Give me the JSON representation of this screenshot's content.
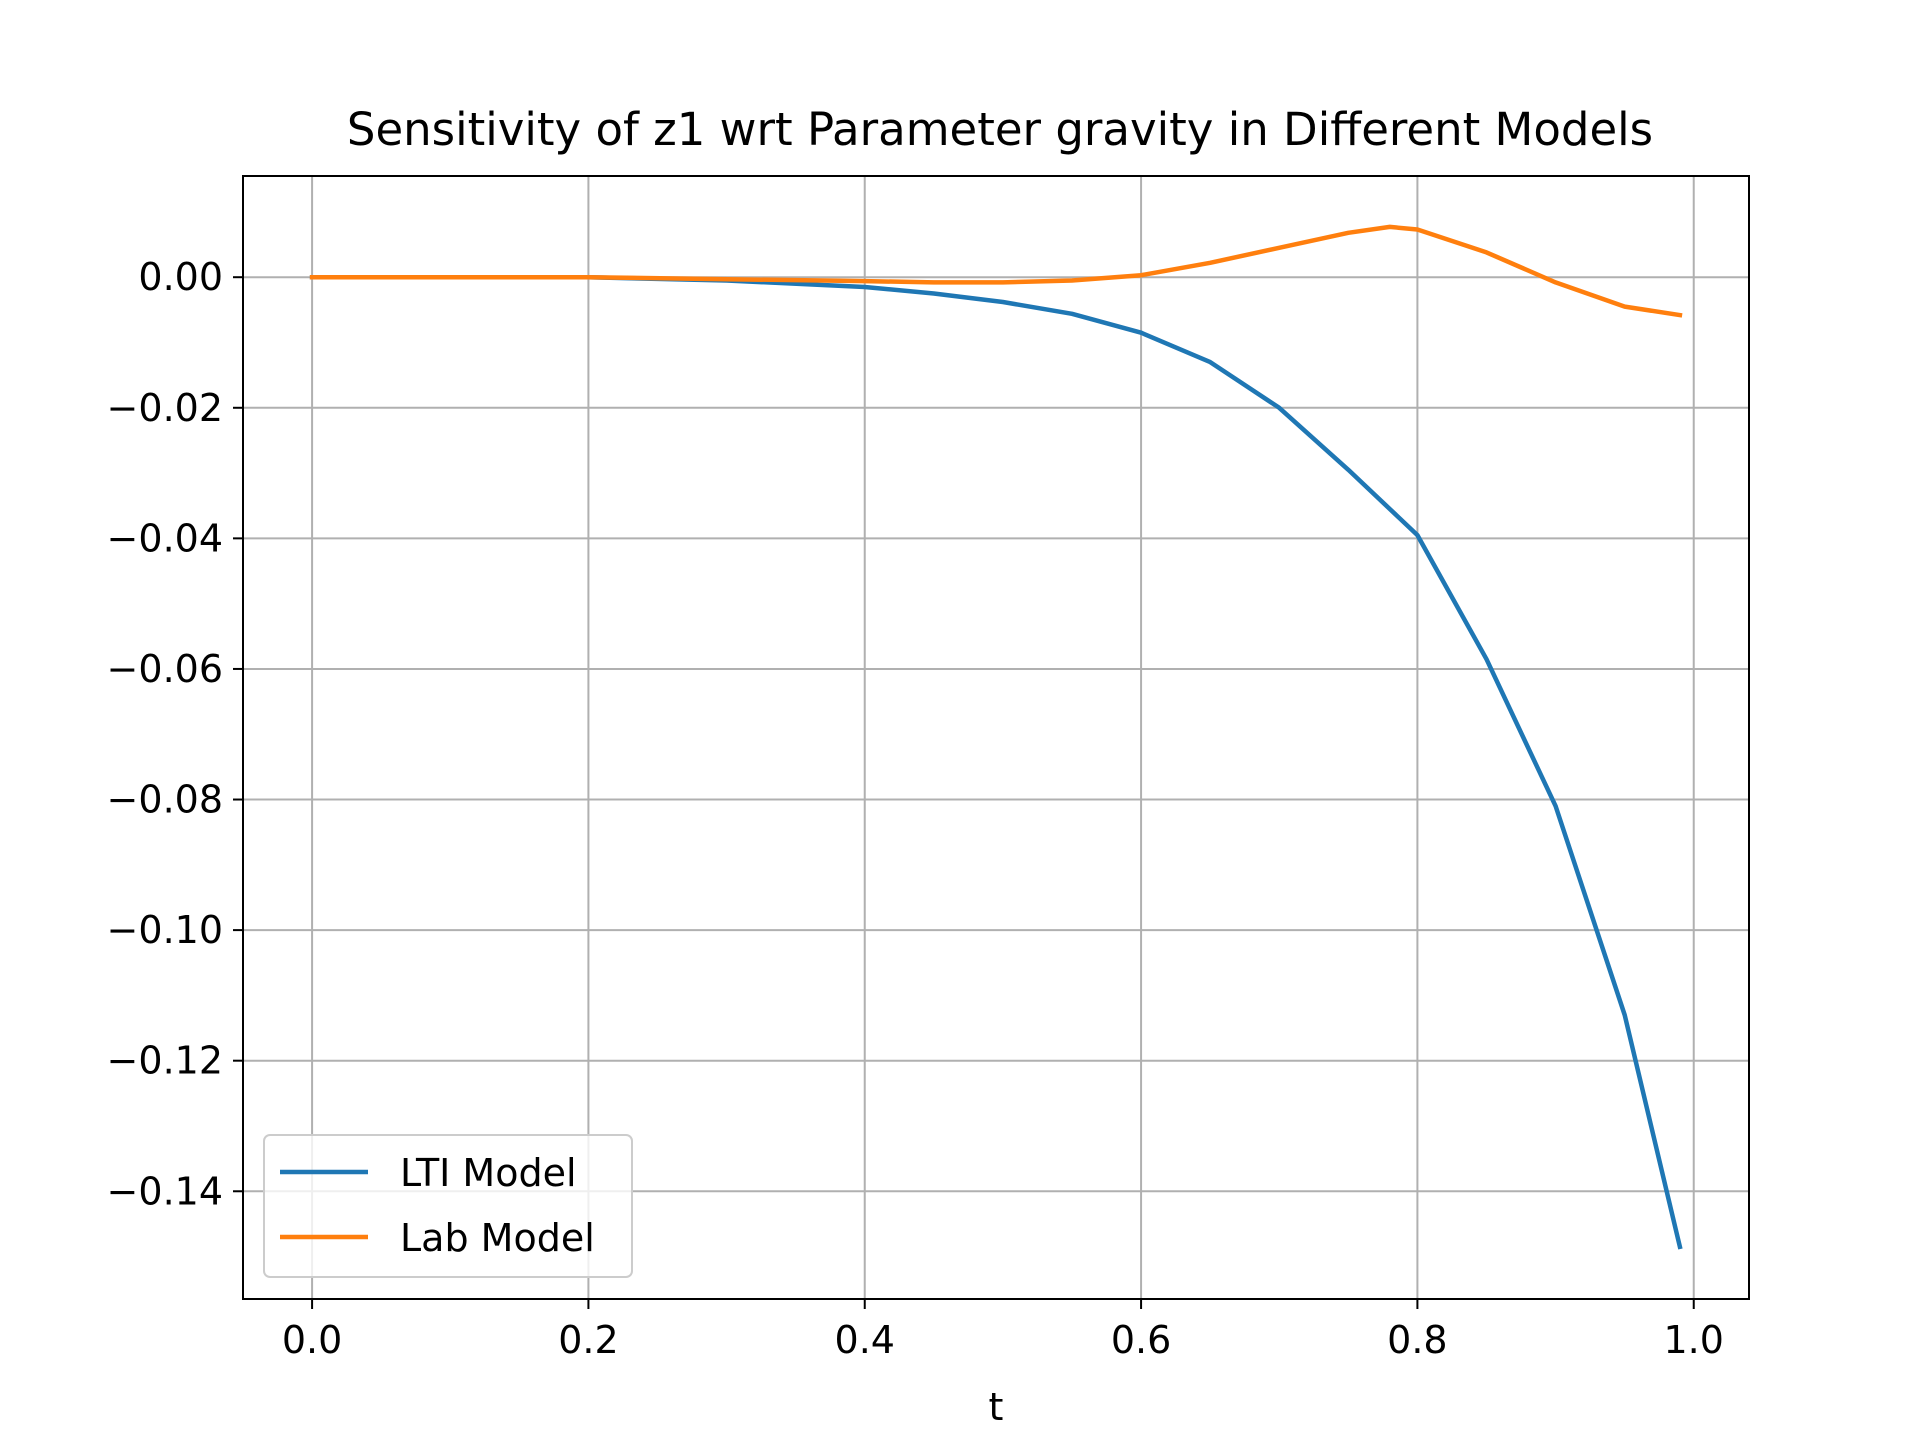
{
  "chart_data": {
    "type": "line",
    "title": "Sensitivity of z1 wrt Parameter gravity in Different Models",
    "xlabel": "t",
    "ylabel": "",
    "xlim": [
      -0.05,
      1.04
    ],
    "ylim": [
      -0.1565,
      0.0155
    ],
    "xticks": [
      0.0,
      0.2,
      0.4,
      0.6,
      0.8,
      1.0
    ],
    "xtick_labels": [
      "0.0",
      "0.2",
      "0.4",
      "0.6",
      "0.8",
      "1.0"
    ],
    "yticks": [
      0.0,
      -0.02,
      -0.04,
      -0.06,
      -0.08,
      -0.1,
      -0.12,
      -0.14
    ],
    "ytick_labels": [
      "0.00",
      "−0.02",
      "−0.04",
      "−0.06",
      "−0.08",
      "−0.10",
      "−0.12",
      "−0.14"
    ],
    "grid": true,
    "legend_position": "lower-left",
    "series": [
      {
        "name": "LTI Model",
        "color": "#1f77b4",
        "x": [
          0.0,
          0.1,
          0.2,
          0.3,
          0.4,
          0.45,
          0.5,
          0.55,
          0.6,
          0.65,
          0.7,
          0.75,
          0.8,
          0.85,
          0.9,
          0.95,
          0.99
        ],
        "y": [
          0.0,
          0.0,
          0.0,
          -0.0005,
          -0.0015,
          -0.0025,
          -0.0038,
          -0.0056,
          -0.0085,
          -0.013,
          -0.02,
          -0.0295,
          -0.0395,
          -0.0585,
          -0.081,
          -0.113,
          -0.1485
        ]
      },
      {
        "name": "Lab Model",
        "color": "#ff7f0e",
        "x": [
          0.0,
          0.1,
          0.2,
          0.3,
          0.4,
          0.45,
          0.5,
          0.55,
          0.6,
          0.65,
          0.7,
          0.75,
          0.78,
          0.8,
          0.85,
          0.9,
          0.95,
          0.99
        ],
        "y": [
          0.0,
          0.0,
          0.0,
          -0.0003,
          -0.0006,
          -0.0008,
          -0.0008,
          -0.0005,
          0.0003,
          0.0022,
          0.0045,
          0.0068,
          0.0077,
          0.0073,
          0.0038,
          -0.0008,
          -0.0045,
          -0.0058
        ]
      }
    ]
  }
}
